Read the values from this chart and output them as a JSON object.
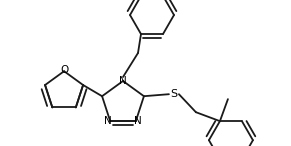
{
  "bg_color": "#ffffff",
  "line_color": "#1a1a1a",
  "line_width": 1.3,
  "figsize": [
    2.91,
    1.46
  ],
  "dpi": 100,
  "xlim": [
    0,
    291
  ],
  "ylim": [
    0,
    146
  ]
}
